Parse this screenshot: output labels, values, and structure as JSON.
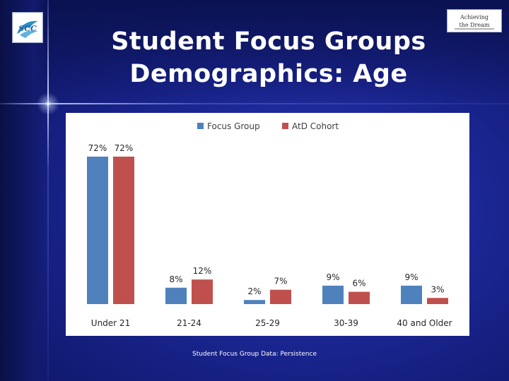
{
  "slide": {
    "title_line1": "Student Focus Groups",
    "title_line2": "Demographics: Age",
    "footer": "Student Focus Group Data: Persistence"
  },
  "logos": {
    "left_text": "SCC",
    "right_line1": "Achieving",
    "right_line2": "the Dream"
  },
  "chart_data": {
    "type": "bar",
    "categories": [
      "Under 21",
      "21-24",
      "25-29",
      "30-39",
      "40 and Older"
    ],
    "series": [
      {
        "name": "Focus Group",
        "color": "#4f81bd",
        "values": [
          72,
          8,
          2,
          9,
          9
        ],
        "labels": [
          "72%",
          "8%",
          "2%",
          "9%",
          "9%"
        ]
      },
      {
        "name": "AtD Cohort",
        "color": "#c0504d",
        "values": [
          72,
          12,
          7,
          6,
          3
        ],
        "labels": [
          "72%",
          "12%",
          "7%",
          "6%",
          "3%"
        ]
      }
    ],
    "ylim": [
      0,
      72
    ],
    "grid": false,
    "legend_position": "top"
  }
}
